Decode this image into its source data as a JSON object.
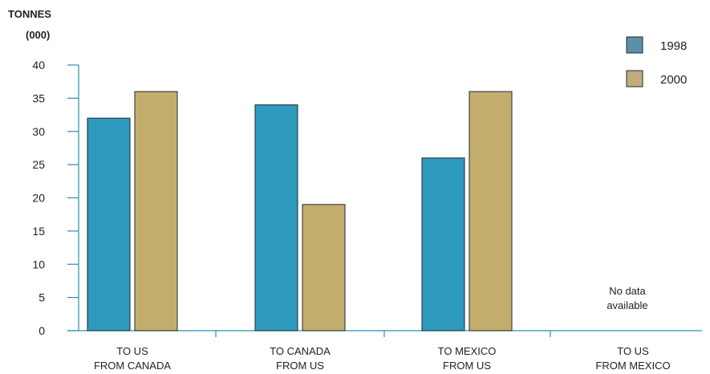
{
  "chart_data": {
    "type": "bar",
    "ylabel_lines": [
      "TONNES",
      "(000)"
    ],
    "categories": [
      [
        "TO US",
        "FROM CANADA"
      ],
      [
        "TO CANADA",
        "FROM US"
      ],
      [
        "TO MEXICO",
        "FROM US"
      ],
      [
        "TO US",
        "FROM MEXICO"
      ]
    ],
    "series": [
      {
        "name": "1998",
        "values": [
          32,
          34,
          26,
          null
        ]
      },
      {
        "name": "2000",
        "values": [
          36,
          19,
          36,
          null
        ]
      }
    ],
    "ylim": [
      0,
      40
    ],
    "yticks": [
      0,
      5,
      10,
      15,
      20,
      25,
      30,
      35,
      40
    ],
    "legend_position": "top-right",
    "grid": false,
    "annotation": [
      "No data",
      "available"
    ]
  },
  "colors": {
    "bar_1998": "#2e9abd",
    "bar_2000": "#c3ad6d",
    "legend_1998": "#5e8fa8",
    "legend_2000": "#c0ab7e",
    "axis": "#2a8fb0"
  }
}
